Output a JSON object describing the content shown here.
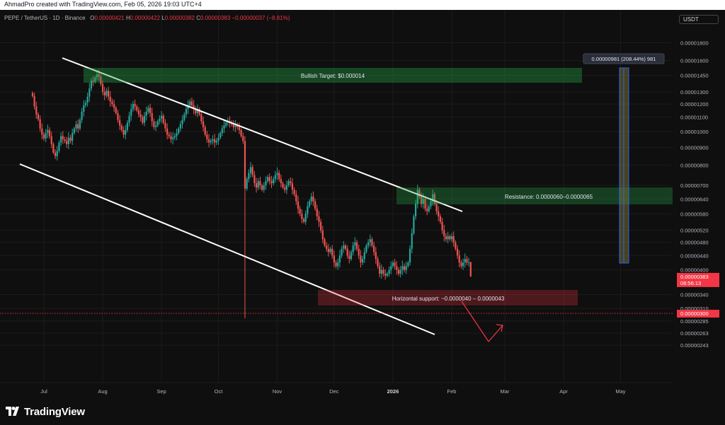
{
  "header": {
    "credit": "AhmadPro created with TradingView.com, Feb 05, 2026 19:03 UTC+4",
    "symbol": "PEPE / TetherUS · 1D · Binance",
    "ohlc": [
      {
        "label": "O",
        "value": "0.00000421"
      },
      {
        "label": "H",
        "value": "0.00000422"
      },
      {
        "label": "L",
        "value": "0.00000382"
      },
      {
        "label": "C",
        "value": "0.00000383"
      }
    ],
    "change": "−0.00000037 (−8.81%)",
    "currency": "USDT"
  },
  "brand": {
    "name": "TradingView"
  },
  "colors": {
    "up": "#26a69a",
    "down": "#ef5350",
    "background": "#0f0f0f",
    "grid": "#1c1c1c",
    "alert": "#f23645"
  },
  "chart_data": {
    "type": "candlestick",
    "scale": "log",
    "price_axis": {
      "ticks": [
        "0.00001800",
        "0.00001600",
        "0.00001450",
        "0.00001300",
        "0.00001200",
        "0.00001100",
        "0.00001000",
        "0.00000900",
        "0.00000800",
        "0.00000700",
        "0.00000640",
        "0.00000580",
        "0.00000520",
        "0.00000480",
        "0.00000440",
        "0.00000400",
        "0.00000340",
        "0.00000310",
        "0.00000285",
        "0.00000263",
        "0.00000243"
      ],
      "last_price": "0.00000383",
      "countdown": "08:56:13",
      "alert_price": "0.00000300"
    },
    "time_axis": {
      "ticks": [
        "Jul",
        "Aug",
        "Sep",
        "Oct",
        "Nov",
        "Dec",
        "2026",
        "Feb",
        "Mar",
        "Apr",
        "May"
      ]
    },
    "candles": {
      "start_date": "2025-06-25",
      "close": [
        1.265e-05,
        1.18e-05,
        1.12e-05,
        1.085e-05,
        1.02e-05,
        9.8e-06,
        9.55e-06,
        9.9e-06,
        1.01e-05,
        9.7e-06,
        9.2e-06,
        8.7e-06,
        8.5e-06,
        8.8e-06,
        9.3e-06,
        9.7e-06,
        9.5e-06,
        9.4e-06,
        9.2e-06,
        9.6e-06,
        9.4e-06,
        9.9e-06,
        1.02e-05,
        1.05e-05,
        1.02e-05,
        1.08e-05,
        1.14e-05,
        1.19e-05,
        1.21e-05,
        1.26e-05,
        1.33e-05,
        1.4e-05,
        1.39e-05,
        1.43e-05,
        1.46e-05,
        1.44e-05,
        1.37e-05,
        1.3e-05,
        1.27e-05,
        1.31e-05,
        1.26e-05,
        1.22e-05,
        1.2e-05,
        1.17e-05,
        1.13e-05,
        1.08e-05,
        1.04e-05,
        1.01e-05,
        9.8e-06,
        1.01e-05,
        1.06e-05,
        1.11e-05,
        1.16e-05,
        1.2e-05,
        1.18e-05,
        1.15e-05,
        1.12e-05,
        1.1e-05,
        1.06e-05,
        1.11e-05,
        1.14e-05,
        1.17e-05,
        1.13e-05,
        1.07e-05,
        1.03e-05,
        1.04e-05,
        1.07e-05,
        1.09e-05,
        1.11e-05,
        1.06e-05,
        1.02e-05,
        9.8e-06,
        9.7e-06,
        9.5e-06,
        9.6e-06,
        9.7e-06,
        9.9e-06,
        1.02e-05,
        1.05e-05,
        1.08e-05,
        1.12e-05,
        1.16e-05,
        1.19e-05,
        1.22e-05,
        1.19e-05,
        1.16e-05,
        1.13e-05,
        1.16e-05,
        1.12e-05,
        1.07e-05,
        1.03e-05,
        9.8e-06,
        9.5e-06,
        9.3e-06,
        9.4e-06,
        9.5e-06,
        9.3e-06,
        9.4e-06,
        9.6e-06,
        9.9e-06,
        1.02e-05,
        1.04e-05,
        1.06e-05,
        1.07e-05,
        1.06e-05,
        1.05e-05,
        1.03e-05,
        1.04e-05,
        1.03e-05,
        1.01e-05,
        9.7e-06,
        9.4e-06,
        6.85e-06,
        7.3e-06,
        7.6e-06,
        7.9e-06,
        7.5e-06,
        7.1e-06,
        6.9e-06,
        7.2e-06,
        7e-06,
        6.8e-06,
        7e-06,
        7.2e-06,
        7.4e-06,
        7.2e-06,
        7.1e-06,
        7.3e-06,
        7.5e-06,
        7.6e-06,
        7.3e-06,
        7.1e-06,
        6.9e-06,
        6.8e-06,
        7e-06,
        7.2e-06,
        7.1e-06,
        6.8e-06,
        6.6e-06,
        6.3e-06,
        6e-06,
        5.8e-06,
        5.6e-06,
        5.5e-06,
        5.8e-06,
        6.1e-06,
        6.3e-06,
        6.5e-06,
        6.3e-06,
        6e-06,
        5.7e-06,
        5.5e-06,
        5.2e-06,
        4.9e-06,
        4.7e-06,
        4.6e-06,
        4.5e-06,
        4.6e-06,
        4.4e-06,
        4.2e-06,
        4.1e-06,
        4.2e-06,
        4.4e-06,
        4.6e-06,
        4.7e-06,
        4.6e-06,
        4.4e-06,
        4.3e-06,
        4.5e-06,
        4.7e-06,
        4.8e-06,
        4.6e-06,
        4.4e-06,
        4.2e-06,
        4.3e-06,
        4.5e-06,
        4.7e-06,
        4.8e-06,
        4.9e-06,
        4.7e-06,
        4.5e-06,
        4.3e-06,
        4.1e-06,
        3.9e-06,
        4e-06,
        3.9e-06,
        3.85e-06,
        3.9e-06,
        4e-06,
        4.1e-06,
        4.2e-06,
        4.1e-06,
        4e-06,
        3.9e-06,
        4e-06,
        4.1e-06,
        4e-06,
        4.1e-06,
        4.2e-06,
        4.6e-06,
        5.1e-06,
        5.7e-06,
        6.2e-06,
        6.8e-06,
        6.5e-06,
        6.2e-06,
        6.4e-06,
        6e-06,
        5.9e-06,
        6.1e-06,
        6.3e-06,
        6.6e-06,
        6.2e-06,
        5.9e-06,
        5.7e-06,
        5.5e-06,
        5.2e-06,
        5e-06,
        4.9e-06,
        5e-06,
        4.9e-06,
        5e-06,
        4.8e-06,
        4.6e-06,
        4.4e-06,
        4.2e-06,
        4.1e-06,
        4.2e-06,
        4.3e-06,
        4.2e-06,
        4.21e-06,
        3.83e-06
      ],
      "last_candle": {
        "open": 4.21e-06,
        "high": 4.22e-06,
        "low": 3.82e-06,
        "close": 3.83e-06
      }
    },
    "annotations": {
      "bullish_target": "Bullish Target: $0.000014",
      "resistance": "Resistance: 0.0000060–0.0000065",
      "support": "Horizontal support: ~0.0000040 – 0.0000043",
      "measure": "0.00000981 (208.44%) 981"
    }
  }
}
